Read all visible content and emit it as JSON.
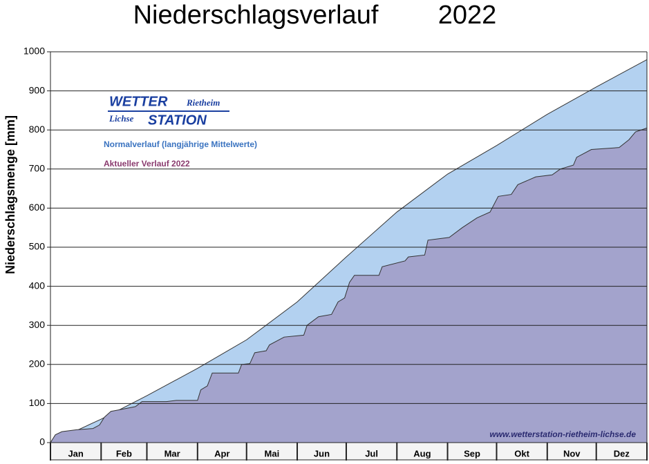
{
  "chart_data": {
    "type": "area",
    "title": "Niederschlagsverlauf",
    "title_year": "2022",
    "y_label": "Niederschlagsmenge [mm]",
    "logo": {
      "line1": "WETTER",
      "line1b": "Rietheim",
      "line2": "Lichse",
      "line2b": "STATION"
    },
    "footer": "www.wetterstation-rietheim-lichse.de",
    "months": [
      "Jan",
      "Feb",
      "Mar",
      "Apr",
      "Mai",
      "Jun",
      "Jul",
      "Aug",
      "Sep",
      "Okt",
      "Nov",
      "Dez"
    ],
    "xlim": [
      0,
      365
    ],
    "xticks": [
      0,
      31,
      59,
      90,
      120,
      151,
      181,
      212,
      243,
      273,
      304,
      334,
      365
    ],
    "ylim": [
      0,
      1000
    ],
    "yticks": [
      0,
      100,
      200,
      300,
      400,
      500,
      600,
      700,
      800,
      900,
      1000
    ],
    "grid": true,
    "series": [
      {
        "name": "Normalverlauf (langjährige Mittelwerte)",
        "color": "#b3d1f0",
        "label_color": "#3a73c0",
        "x": [
          0,
          31,
          59,
          90,
          120,
          151,
          181,
          212,
          243,
          273,
          304,
          334,
          365
        ],
        "values": [
          0,
          60,
          120,
          190,
          263,
          360,
          475,
          590,
          687,
          760,
          840,
          910,
          980
        ]
      },
      {
        "name": "Aktueller Verlauf 2022",
        "color": "#a3a3cc",
        "label_color": "#8a3a6e",
        "x": [
          0,
          3,
          7,
          16,
          26,
          30,
          33,
          37,
          41,
          52,
          56,
          71,
          77,
          90,
          92,
          96,
          99,
          115,
          117,
          122,
          125,
          132,
          134,
          143,
          155,
          157,
          164,
          172,
          176,
          180,
          183,
          186,
          201,
          203,
          217,
          219,
          229,
          231,
          244,
          252,
          261,
          269,
          274,
          282,
          286,
          297,
          307,
          312,
          320,
          322,
          331,
          348,
          354,
          358,
          365
        ],
        "values": [
          0,
          20,
          28,
          33,
          36,
          45,
          65,
          80,
          83,
          92,
          105,
          105,
          108,
          108,
          135,
          145,
          178,
          178,
          200,
          202,
          230,
          235,
          250,
          270,
          275,
          300,
          322,
          328,
          360,
          370,
          410,
          428,
          428,
          450,
          465,
          475,
          480,
          518,
          525,
          550,
          575,
          590,
          630,
          635,
          660,
          680,
          685,
          700,
          710,
          730,
          750,
          755,
          775,
          795,
          805
        ]
      }
    ]
  }
}
